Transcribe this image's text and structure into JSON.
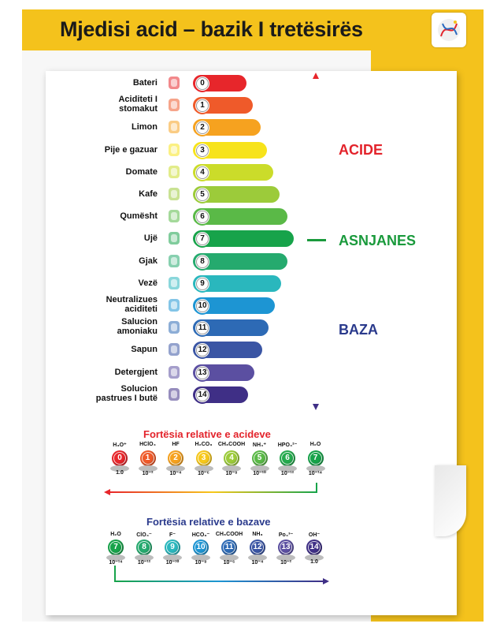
{
  "title": "Mjedisi acid – bazik I tretësirës",
  "scale": [
    {
      "label": "Bateri",
      "ph": "0",
      "color": "#e7262b",
      "icon": "battery-icon"
    },
    {
      "label": "Aciditeti I\nstomakut",
      "ph": "1",
      "color": "#ef5a2a",
      "icon": "stomach-icon"
    },
    {
      "label": "Limon",
      "ph": "2",
      "color": "#f6a21f",
      "icon": "lemon-icon"
    },
    {
      "label": "Pije e gazuar",
      "ph": "3",
      "color": "#f7e31b",
      "icon": "soda-can-icon"
    },
    {
      "label": "Domate",
      "ph": "4",
      "color": "#cbdc2a",
      "icon": "tomato-icon"
    },
    {
      "label": "Kafe",
      "ph": "5",
      "color": "#9ccb3a",
      "icon": "coffee-cup-icon"
    },
    {
      "label": "Qumësht",
      "ph": "6",
      "color": "#5ab947",
      "icon": "milk-bottle-icon"
    },
    {
      "label": "Ujë",
      "ph": "7",
      "color": "#17a34a",
      "icon": "water-bottle-icon"
    },
    {
      "label": "Gjak",
      "ph": "8",
      "color": "#25aa6e",
      "icon": "blood-tube-icon"
    },
    {
      "label": "Vezë",
      "ph": "9",
      "color": "#2ab7bd",
      "icon": "egg-icon"
    },
    {
      "label": "Neutralizues\naciditeti",
      "ph": "10",
      "color": "#1d95d3",
      "icon": "stomach-icon"
    },
    {
      "label": "Salucion\namoniaku",
      "ph": "11",
      "color": "#2d6ab5",
      "icon": "flask-icon"
    },
    {
      "label": "Sapun",
      "ph": "12",
      "color": "#3a55a4",
      "icon": "soap-icon"
    },
    {
      "label": "Detergjent",
      "ph": "13",
      "color": "#5b4fa1",
      "icon": "detergent-icon"
    },
    {
      "label": "Solucion\npastrues I butë",
      "ph": "14",
      "color": "#3f2f86",
      "icon": "sink-icon"
    }
  ],
  "labels": {
    "acid": "ACIDE",
    "neutral": "ASNJANES",
    "base": "BAZA"
  },
  "acid_strength": {
    "title": "Fortësia relative e acideve",
    "items": [
      {
        "formula": "H₃O⁺",
        "n": "0",
        "k": "1.0",
        "color": "#e7262b"
      },
      {
        "formula": "HClO₄",
        "n": "1",
        "k": "10⁻²",
        "color": "#ef5a2a"
      },
      {
        "formula": "HF",
        "n": "2",
        "k": "10⁻⁴",
        "color": "#f6a21f"
      },
      {
        "formula": "H₂CO₃",
        "n": "3",
        "k": "10⁻⁶",
        "color": "#f7c81b"
      },
      {
        "formula": "CH₃COOH",
        "n": "4",
        "k": "10⁻⁸",
        "color": "#9ccb3a"
      },
      {
        "formula": "NH₄⁺",
        "n": "5",
        "k": "10⁻¹⁰",
        "color": "#5ab947"
      },
      {
        "formula": "HPO₄²⁻",
        "n": "6",
        "k": "10⁻¹²",
        "color": "#25aa4e"
      },
      {
        "formula": "H₂O",
        "n": "7",
        "k": "10⁻¹⁴",
        "color": "#17a34a"
      }
    ]
  },
  "base_strength": {
    "title": "Fortësia relative e bazave",
    "items": [
      {
        "formula": "H₂O",
        "n": "7",
        "k": "10⁻¹⁴",
        "color": "#17a34a"
      },
      {
        "formula": "ClO₄⁻",
        "n": "8",
        "k": "10⁻¹²",
        "color": "#25aa6e"
      },
      {
        "formula": "F⁻",
        "n": "9",
        "k": "10⁻¹⁰",
        "color": "#2ab7bd"
      },
      {
        "formula": "HCO₃⁻",
        "n": "10",
        "k": "10⁻⁸",
        "color": "#1d95d3"
      },
      {
        "formula": "CH₃COOH",
        "n": "11",
        "k": "10⁻⁶",
        "color": "#2d6ab5"
      },
      {
        "formula": "NH₃",
        "n": "12",
        "k": "10⁻⁴",
        "color": "#3a55a4"
      },
      {
        "formula": "Po₄³⁻",
        "n": "13",
        "k": "10⁻²",
        "color": "#5b4fa1"
      },
      {
        "formula": "OH⁻",
        "n": "14",
        "k": "1.0",
        "color": "#3f2f86"
      }
    ]
  }
}
